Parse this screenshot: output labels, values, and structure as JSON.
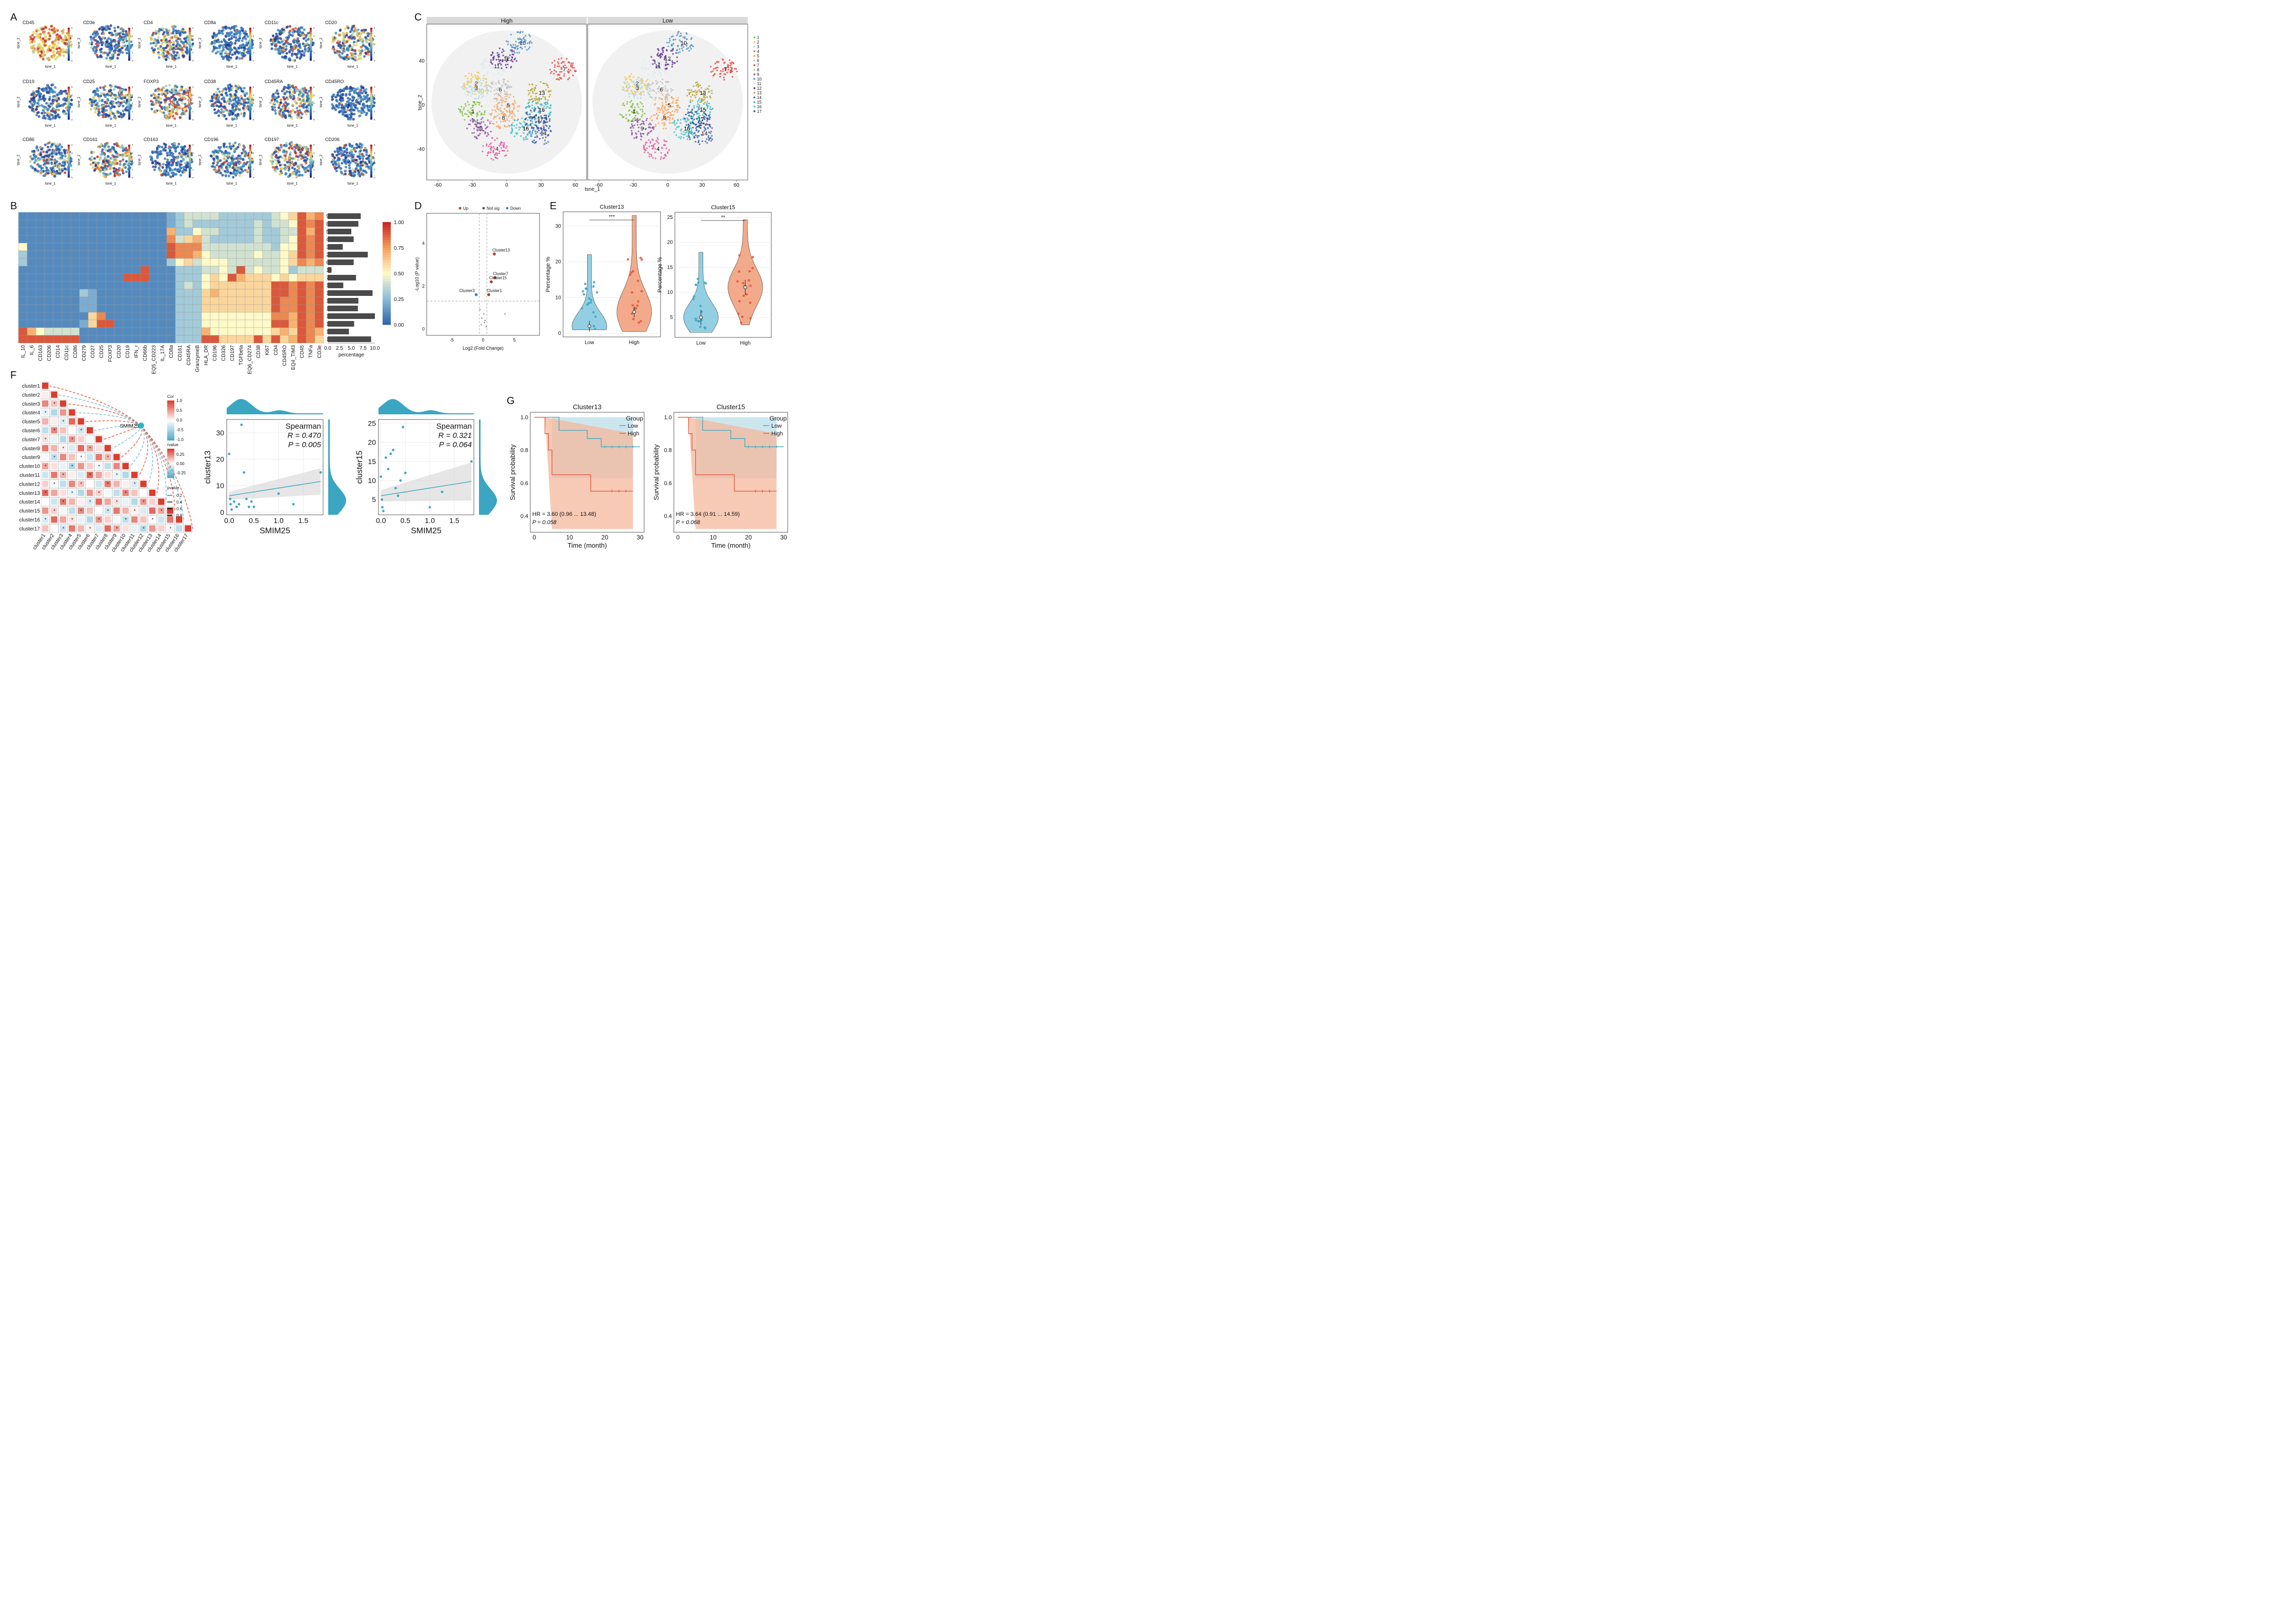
{
  "panel_letters": [
    "A",
    "B",
    "C",
    "D",
    "E",
    "F",
    "G"
  ],
  "panelA": {
    "markers": [
      "CD45",
      "CD3e",
      "CD4",
      "CD8a",
      "CD11c",
      "CD20",
      "CD19",
      "CD25",
      "FOXP3",
      "CD38",
      "CD45RA",
      "CD45RO",
      "CD86",
      "CD161",
      "CD163",
      "CD196",
      "CD197",
      "CD206"
    ],
    "xlabel": "tsne_1",
    "ylabel": "tsne_2",
    "colorbar_ticks": [
      "0",
      "1",
      "2",
      "3",
      "4"
    ]
  },
  "panelB": {
    "columns": [
      "IL_10",
      "IL_6",
      "CD163",
      "CD206",
      "CD14",
      "CD11c",
      "CD86",
      "CD279",
      "CD27",
      "CD25",
      "FOXP3",
      "CD20",
      "CD19",
      "IFN_r",
      "CD66b",
      "EQ5_CD223",
      "IL_17A",
      "CD8a",
      "CD161",
      "CD45RA",
      "GranzymeB",
      "HLA_DR",
      "CD196",
      "CD326",
      "CD197",
      "TGFbeta",
      "EQ6_CD274",
      "CD38",
      "Ki67",
      "CD4",
      "CD45RO",
      "EQ4_TIM3",
      "CD45",
      "TNFa",
      "CD3e"
    ],
    "rows": [
      "9",
      "8",
      "5",
      "4",
      "3",
      "2",
      "6",
      "10",
      "7",
      "17",
      "15",
      "14",
      "16",
      "1",
      "13",
      "12",
      "11"
    ],
    "matrix": [
      [
        0.1,
        0.1,
        0.1,
        0.1,
        0.1,
        0.1,
        0.1,
        0.1,
        0.1,
        0.1,
        0.1,
        0.1,
        0.1,
        0.1,
        0.1,
        0.1,
        0.1,
        0.2,
        0.3,
        0.4,
        0.4,
        0.4,
        0.4,
        0.3,
        0.3,
        0.3,
        0.3,
        0.3,
        0.3,
        0.4,
        0.5,
        0.6,
        0.9,
        0.7,
        0.8
      ],
      [
        0.1,
        0.1,
        0.1,
        0.1,
        0.1,
        0.1,
        0.1,
        0.1,
        0.1,
        0.1,
        0.1,
        0.1,
        0.1,
        0.1,
        0.1,
        0.1,
        0.1,
        0.2,
        0.3,
        0.4,
        0.3,
        0.3,
        0.3,
        0.3,
        0.3,
        0.3,
        0.3,
        0.4,
        0.3,
        0.4,
        0.4,
        0.5,
        0.9,
        0.8,
        0.9
      ],
      [
        0.1,
        0.1,
        0.1,
        0.1,
        0.1,
        0.1,
        0.1,
        0.1,
        0.1,
        0.1,
        0.1,
        0.1,
        0.1,
        0.1,
        0.1,
        0.1,
        0.1,
        0.7,
        0.3,
        0.3,
        0.5,
        0.4,
        0.4,
        0.3,
        0.3,
        0.3,
        0.3,
        0.4,
        0.3,
        0.3,
        0.4,
        0.4,
        0.9,
        0.7,
        0.9
      ],
      [
        0.1,
        0.1,
        0.1,
        0.1,
        0.1,
        0.1,
        0.1,
        0.1,
        0.1,
        0.1,
        0.1,
        0.1,
        0.1,
        0.1,
        0.1,
        0.1,
        0.1,
        0.8,
        0.4,
        0.6,
        0.7,
        0.4,
        0.3,
        0.3,
        0.3,
        0.3,
        0.3,
        0.4,
        0.3,
        0.3,
        0.4,
        0.5,
        0.9,
        0.8,
        0.9
      ],
      [
        0.5,
        0.1,
        0.1,
        0.1,
        0.1,
        0.1,
        0.1,
        0.1,
        0.1,
        0.1,
        0.1,
        0.1,
        0.1,
        0.1,
        0.1,
        0.1,
        0.1,
        0.9,
        0.8,
        0.8,
        0.8,
        0.4,
        0.4,
        0.4,
        0.4,
        0.4,
        0.4,
        0.4,
        0.4,
        0.3,
        0.5,
        0.5,
        0.9,
        0.8,
        0.9
      ],
      [
        0.3,
        0.1,
        0.1,
        0.1,
        0.1,
        0.1,
        0.1,
        0.1,
        0.1,
        0.1,
        0.1,
        0.1,
        0.1,
        0.1,
        0.1,
        0.1,
        0.1,
        0.9,
        0.8,
        0.8,
        0.7,
        0.5,
        0.4,
        0.4,
        0.4,
        0.4,
        0.4,
        0.5,
        0.4,
        0.4,
        0.5,
        0.6,
        0.9,
        0.8,
        0.9
      ],
      [
        0.3,
        0.1,
        0.1,
        0.1,
        0.1,
        0.1,
        0.1,
        0.1,
        0.1,
        0.1,
        0.1,
        0.1,
        0.1,
        0.1,
        0.1,
        0.1,
        0.1,
        0.3,
        0.5,
        0.6,
        0.4,
        0.5,
        0.5,
        0.5,
        0.4,
        0.4,
        0.4,
        0.4,
        0.4,
        0.4,
        0.5,
        0.6,
        0.8,
        0.7,
        0.8
      ],
      [
        0.1,
        0.1,
        0.1,
        0.1,
        0.1,
        0.1,
        0.1,
        0.1,
        0.1,
        0.1,
        0.1,
        0.1,
        0.1,
        0.1,
        0.9,
        0.1,
        0.1,
        0.1,
        0.3,
        0.3,
        0.3,
        0.4,
        0.4,
        0.5,
        0.4,
        0.9,
        0.4,
        0.5,
        0.4,
        0.4,
        0.5,
        0.3,
        0.4,
        0.4,
        0.4
      ],
      [
        0.1,
        0.1,
        0.1,
        0.1,
        0.1,
        0.1,
        0.1,
        0.1,
        0.1,
        0.1,
        0.1,
        0.1,
        0.9,
        0.9,
        0.9,
        0.1,
        0.1,
        0.1,
        0.3,
        0.3,
        0.3,
        0.5,
        0.6,
        0.5,
        0.9,
        0.7,
        0.6,
        0.6,
        0.6,
        0.5,
        0.6,
        0.5,
        0.6,
        0.6,
        0.6
      ],
      [
        0.1,
        0.1,
        0.1,
        0.1,
        0.1,
        0.1,
        0.1,
        0.1,
        0.1,
        0.1,
        0.1,
        0.1,
        0.1,
        0.1,
        0.1,
        0.1,
        0.1,
        0.1,
        0.3,
        0.4,
        0.3,
        0.5,
        0.6,
        0.6,
        0.6,
        0.6,
        0.6,
        0.6,
        0.6,
        0.9,
        0.9,
        0.8,
        0.9,
        0.8,
        0.9
      ],
      [
        0.1,
        0.1,
        0.1,
        0.1,
        0.1,
        0.1,
        0.1,
        0.3,
        0.2,
        0.1,
        0.1,
        0.1,
        0.1,
        0.1,
        0.1,
        0.1,
        0.1,
        0.1,
        0.3,
        0.3,
        0.3,
        0.6,
        0.7,
        0.6,
        0.6,
        0.6,
        0.6,
        0.6,
        0.6,
        0.9,
        0.9,
        0.8,
        0.9,
        0.8,
        0.9
      ],
      [
        0.1,
        0.1,
        0.1,
        0.1,
        0.1,
        0.1,
        0.1,
        0.2,
        0.2,
        0.1,
        0.1,
        0.1,
        0.1,
        0.1,
        0.1,
        0.1,
        0.1,
        0.1,
        0.3,
        0.3,
        0.3,
        0.6,
        0.6,
        0.6,
        0.6,
        0.6,
        0.6,
        0.6,
        0.6,
        0.9,
        0.8,
        0.8,
        0.9,
        0.8,
        0.9
      ],
      [
        0.1,
        0.1,
        0.1,
        0.1,
        0.1,
        0.1,
        0.1,
        0.2,
        0.2,
        0.1,
        0.1,
        0.1,
        0.1,
        0.1,
        0.1,
        0.1,
        0.1,
        0.1,
        0.3,
        0.3,
        0.3,
        0.6,
        0.6,
        0.6,
        0.6,
        0.6,
        0.6,
        0.6,
        0.6,
        0.9,
        0.8,
        0.8,
        0.9,
        0.8,
        0.9
      ],
      [
        0.1,
        0.1,
        0.1,
        0.1,
        0.1,
        0.1,
        0.1,
        0.1,
        0.6,
        0.8,
        0.1,
        0.1,
        0.1,
        0.1,
        0.1,
        0.1,
        0.1,
        0.1,
        0.3,
        0.3,
        0.3,
        0.5,
        0.5,
        0.5,
        0.5,
        0.5,
        0.5,
        0.5,
        0.5,
        0.8,
        0.8,
        0.7,
        0.9,
        0.8,
        0.9
      ],
      [
        0.1,
        0.1,
        0.1,
        0.1,
        0.1,
        0.1,
        0.1,
        0.2,
        0.6,
        0.9,
        0.9,
        0.1,
        0.1,
        0.1,
        0.1,
        0.1,
        0.1,
        0.1,
        0.3,
        0.3,
        0.3,
        0.5,
        0.5,
        0.5,
        0.5,
        0.5,
        0.5,
        0.5,
        0.5,
        0.9,
        0.9,
        0.7,
        0.9,
        0.8,
        0.9
      ],
      [
        0.9,
        0.7,
        0.5,
        0.4,
        0.4,
        0.4,
        0.4,
        0.1,
        0.1,
        0.1,
        0.1,
        0.1,
        0.1,
        0.1,
        0.1,
        0.1,
        0.1,
        0.1,
        0.3,
        0.3,
        0.3,
        0.7,
        0.5,
        0.5,
        0.5,
        0.5,
        0.5,
        0.5,
        0.5,
        0.6,
        0.7,
        0.6,
        0.9,
        0.8,
        0.7
      ],
      [
        0.9,
        0.9,
        0.9,
        0.9,
        0.9,
        0.9,
        0.9,
        0.1,
        0.1,
        0.1,
        0.1,
        0.1,
        0.1,
        0.1,
        0.1,
        0.1,
        0.1,
        0.1,
        0.3,
        0.3,
        0.3,
        0.9,
        0.9,
        0.6,
        0.6,
        0.6,
        0.6,
        0.9,
        0.6,
        0.9,
        0.6,
        0.7,
        0.9,
        0.8,
        0.6
      ]
    ],
    "percentage": [
      7.0,
      6.5,
      5.0,
      5.5,
      3.2,
      8.5,
      5.5,
      0.8,
      6.0,
      3.3,
      9.5,
      6.5,
      6.4,
      10.0,
      5.6,
      4.5,
      9.2
    ],
    "percentage_ticks": [
      "0.0",
      "2.5",
      "5.0",
      "7.5",
      "10.0"
    ],
    "percentage_label": "percentage",
    "colorbar_ticks": [
      "1.00",
      "0.75",
      "0.50",
      "0.25",
      "0.00"
    ]
  },
  "panelC": {
    "facets": [
      "High",
      "Low"
    ],
    "xlabel": "tsne_1",
    "ylabel": "tsne_2",
    "x_ticks": [
      "-60",
      "-30",
      "0",
      "30",
      "60"
    ],
    "y_ticks": [
      "40",
      "0",
      "-40"
    ],
    "clusters": [
      "1",
      "2",
      "3",
      "4",
      "5",
      "6",
      "7",
      "8",
      "9",
      "10",
      "11",
      "12",
      "13",
      "14",
      "15",
      "16",
      "17"
    ],
    "cluster_colors": [
      "#7cbf3a",
      "#f5c542",
      "#b5d9e6",
      "#e6559b",
      "#f6a45a",
      "#c0c0c0",
      "#e8413c",
      "#f2a86d",
      "#8a4fa0",
      "#4a8fc9",
      "#dfe9f1",
      "#5c2e91",
      "#b8a234",
      "#3a5fae",
      "#2cb7c6",
      "#3ac1c4",
      "#2c4a8c"
    ]
  },
  "panelD": {
    "legend": [
      "Up",
      "Not sig",
      "Down"
    ],
    "legend_colors": [
      "#c0392b",
      "#555555",
      "#3a8fb5"
    ],
    "xlabel": "Log2 (Fold Change)",
    "ylabel": "-Log10 (P value)",
    "x_ticks": [
      "-5",
      "0",
      "5"
    ],
    "y_ticks": [
      "0",
      "2",
      "4"
    ],
    "labels": [
      "Cluster13",
      "Cluster7",
      "Cluster15",
      "Cluster3",
      "Cluster1"
    ]
  },
  "panelE": {
    "plots": [
      {
        "title": "Cluster13",
        "ylabel": "Percentage %",
        "categories": [
          "Low",
          "High"
        ],
        "significance": "***",
        "y_ticks": [
          "0",
          "10",
          "20",
          "30"
        ]
      },
      {
        "title": "Cluster15",
        "ylabel": "Percentage %",
        "categories": [
          "Low",
          "High"
        ],
        "significance": "**",
        "y_ticks": [
          "5",
          "10",
          "15",
          "20",
          "25"
        ]
      }
    ],
    "colors": [
      "#7fc7de",
      "#f09b76"
    ]
  },
  "panelF": {
    "clusters": [
      "cluster1",
      "cluster2",
      "cluster3",
      "cluster4",
      "cluster5",
      "cluster6",
      "cluster7",
      "cluster8",
      "cluster9",
      "cluster10",
      "cluster11",
      "cluster12",
      "cluster13",
      "cluster14",
      "cluster15",
      "cluster16",
      "cluster17"
    ],
    "hub": "SMIM25",
    "legend_cor_title": "Cor",
    "legend_cor_ticks": [
      "1.0",
      "0.5",
      "0.0",
      "-0.5",
      "-1.0"
    ],
    "legend_r_title": "rvalue",
    "legend_r_ticks": [
      "0.25",
      "0.00",
      "-0.25"
    ],
    "legend_p_title": "pvalue",
    "legend_p_ticks": [
      "0.2",
      "0.4",
      "0.6",
      "0.8"
    ]
  },
  "scatter1": {
    "xlabel": "SMIM25",
    "ylabel": "cluster13",
    "stat_title": "Spearman",
    "R": "R = 0.470",
    "P": "P = 0.005",
    "x_ticks": [
      "0.0",
      "0.5",
      "1.0",
      "1.5"
    ],
    "y_ticks": [
      "0",
      "10",
      "20",
      "30"
    ]
  },
  "scatter2": {
    "xlabel": "SMIM25",
    "ylabel": "cluster15",
    "stat_title": "Spearman",
    "R": "R = 0.321",
    "P": "P = 0.064",
    "x_ticks": [
      "0.0",
      "0.5",
      "1.0",
      "1.5"
    ],
    "y_ticks": [
      "5",
      "10",
      "15",
      "20",
      "25"
    ]
  },
  "panelG": {
    "plots": [
      {
        "title": "Cluster13",
        "hr": "HR = 3.60 (0.96 ... 13.48)",
        "p": "P = 0.058"
      },
      {
        "title": "Cluster15",
        "hr": "HR = 3.64 (0.91 ... 14.59)",
        "p": "P = 0.068"
      }
    ],
    "legend_title": "Group",
    "legend": [
      "Low",
      "High"
    ],
    "colors": [
      "#3aa6c2",
      "#e5533a"
    ],
    "xlabel": "Time (month)",
    "ylabel": "Survival probability",
    "x_ticks": [
      "0",
      "10",
      "20",
      "30"
    ],
    "y_ticks": [
      "0.4",
      "0.6",
      "0.8",
      "1.0"
    ]
  },
  "chart_data": [
    {
      "type": "heatmap",
      "title": "Panel B cluster marker expression",
      "note": "matrix stored in panelB.matrix (rows x columns, 0-1 scale)"
    },
    {
      "type": "bar",
      "title": "Panel B cluster percentage",
      "categories": [
        "9",
        "8",
        "5",
        "4",
        "3",
        "2",
        "6",
        "10",
        "7",
        "17",
        "15",
        "14",
        "16",
        "1",
        "13",
        "12",
        "11"
      ],
      "values": [
        7.0,
        6.5,
        5.0,
        5.5,
        3.2,
        8.5,
        5.5,
        0.8,
        6.0,
        3.3,
        9.5,
        6.5,
        6.4,
        10.0,
        5.6,
        4.5,
        9.2
      ],
      "xlabel": "percentage",
      "xlim": [
        0,
        10
      ]
    },
    {
      "type": "scatter",
      "title": "Panel D volcano",
      "xlabel": "Log2 (Fold Change)",
      "ylabel": "-Log10 (P value)",
      "xlim": [
        -9,
        9
      ],
      "ylim": [
        -0.3,
        5.4
      ],
      "points": [
        {
          "label": "Cluster13",
          "x": 1.8,
          "y": 3.5,
          "class": "Up"
        },
        {
          "label": "Cluster7",
          "x": 1.9,
          "y": 2.4,
          "class": "Up"
        },
        {
          "label": "Cluster15",
          "x": 1.3,
          "y": 2.2,
          "class": "Up"
        },
        {
          "label": "Cluster1",
          "x": 0.9,
          "y": 1.6,
          "class": "Up"
        },
        {
          "label": "Cluster3",
          "x": -1.1,
          "y": 1.6,
          "class": "Down"
        }
      ]
    },
    {
      "type": "scatter",
      "title": "Spearman cluster13 vs SMIM25",
      "x": [
        0.0,
        0.02,
        0.03,
        0.05,
        0.1,
        0.15,
        0.2,
        0.25,
        0.3,
        0.35,
        0.4,
        0.45,
        0.5,
        1.0,
        1.3,
        1.85
      ],
      "y": [
        22,
        5,
        3,
        1,
        4,
        2,
        3,
        33,
        15,
        5,
        2,
        4,
        2,
        7,
        3,
        15
      ]
    },
    {
      "type": "scatter",
      "title": "Spearman cluster15 vs SMIM25",
      "x": [
        0.0,
        0.02,
        0.03,
        0.05,
        0.1,
        0.15,
        0.2,
        0.25,
        0.3,
        0.35,
        0.4,
        0.45,
        0.5,
        1.0,
        1.25,
        1.85
      ],
      "y": [
        11,
        5,
        3,
        2,
        16,
        13,
        17,
        18,
        8,
        6,
        10,
        24,
        12,
        3,
        7,
        15
      ]
    }
  ]
}
